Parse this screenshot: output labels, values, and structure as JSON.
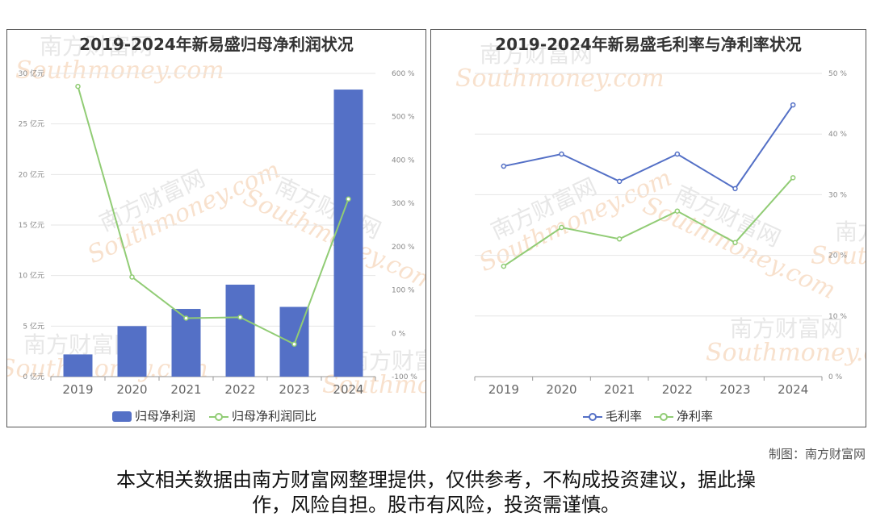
{
  "chart_data": [
    {
      "type": "bar",
      "title": "2019-2024年新易盛归母净利润状况",
      "categories": [
        "2019",
        "2020",
        "2021",
        "2022",
        "2023",
        "2024"
      ],
      "series": [
        {
          "name": "归母净利润",
          "type": "bar",
          "axis": "left",
          "color": "#5470c6",
          "values": [
            2.2,
            5.0,
            6.7,
            9.1,
            6.9,
            28.4
          ]
        },
        {
          "name": "归母净利润同比",
          "type": "line",
          "axis": "right",
          "color": "#91cc75",
          "values": [
            570,
            130,
            35,
            37,
            -25,
            310
          ]
        }
      ],
      "y_left": {
        "min": 0,
        "max": 30,
        "ticks": [
          0,
          5,
          10,
          15,
          20,
          25,
          30
        ],
        "tick_labels": [
          "0 亿元",
          "5 亿元",
          "10 亿元",
          "15 亿元",
          "20 亿元",
          "25 亿元",
          "30 亿元"
        ]
      },
      "y_right": {
        "min": -100,
        "max": 600,
        "ticks": [
          -100,
          0,
          100,
          200,
          300,
          400,
          500,
          600
        ],
        "tick_labels": [
          "-100 %",
          "0 %",
          "100 %",
          "200 %",
          "300 %",
          "400 %",
          "500 %",
          "600 %"
        ]
      },
      "legend": "bottom-center",
      "grid": true
    },
    {
      "type": "line",
      "title": "2019-2024年新易盛毛利率与净利率状况",
      "categories": [
        "2019",
        "2020",
        "2021",
        "2022",
        "2023",
        "2024"
      ],
      "series": [
        {
          "name": "毛利率",
          "color": "#5470c6",
          "values": [
            34.7,
            36.7,
            32.2,
            36.7,
            31.0,
            44.8
          ]
        },
        {
          "name": "净利率",
          "color": "#91cc75",
          "values": [
            18.2,
            24.6,
            22.7,
            27.3,
            22.1,
            32.8
          ]
        }
      ],
      "y_right": {
        "min": 0,
        "max": 50,
        "ticks": [
          0,
          10,
          20,
          30,
          40,
          50
        ],
        "tick_labels": [
          "0 %",
          "10 %",
          "20 %",
          "30 %",
          "40 %",
          "50 %"
        ]
      },
      "legend": "bottom-center",
      "grid": true
    }
  ],
  "watermark": {
    "cn": "南方财富网",
    "en": "Southmoney.com"
  },
  "credit": "制图：南方财富网",
  "disclaimer_line1": "本文相关数据由南方财富网整理提供，仅供参考，不构成投资建议，据此操",
  "disclaimer_line2": "作，风险自担。股市有风险，投资需谨慎。"
}
